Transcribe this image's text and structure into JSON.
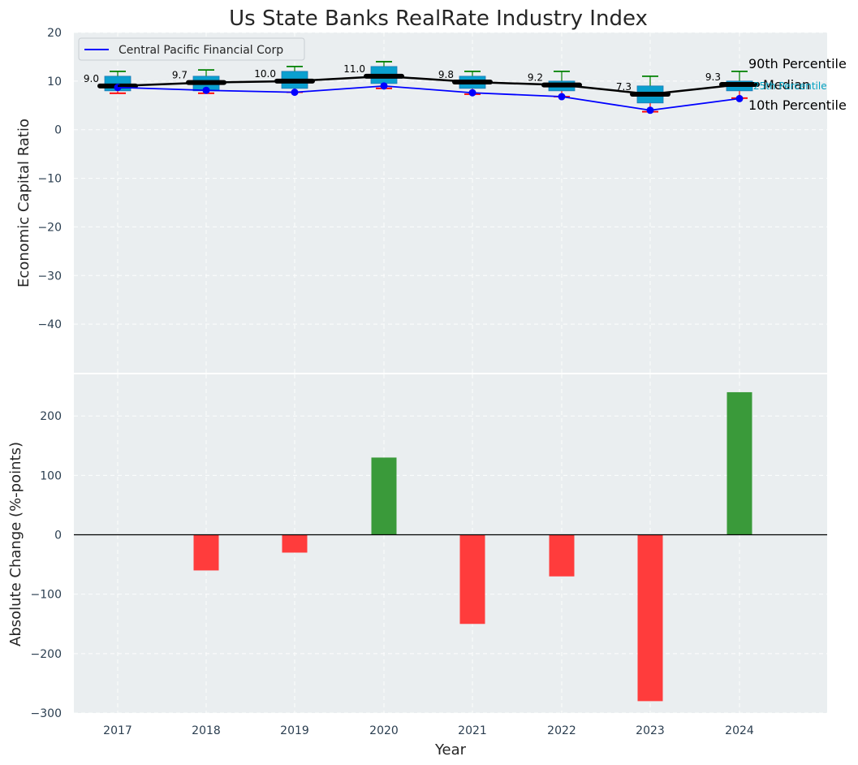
{
  "colors": {
    "panel_bg": "#eaeef0",
    "box_fill": "#0aa0cf",
    "box_edge": "#1e77b4",
    "median_line": "#000000",
    "company_line": "#0000ff",
    "whisker_top": "#008000",
    "whisker_bottom": "#ff0000",
    "bar_pos": "#3a9a3a",
    "bar_neg": "#ff3c3c",
    "label_25th": "#00a0c0"
  },
  "chart_data": [
    {
      "type": "box-line",
      "title": "Us State Banks RealRate Industry Index",
      "ylabel": "Economic Capital Ratio",
      "ylim": [
        -50,
        20
      ],
      "yticks": [
        20,
        10,
        0,
        -10,
        -20,
        -30,
        -40
      ],
      "ytick_labels": [
        "20",
        "10",
        "0",
        "−10",
        "−20",
        "−30",
        "−40"
      ],
      "categories": [
        "2017",
        "2018",
        "2019",
        "2020",
        "2021",
        "2022",
        "2023",
        "2024"
      ],
      "p90": [
        12.0,
        12.3,
        13.0,
        14.0,
        12.0,
        12.0,
        11.0,
        12.0
      ],
      "p75": [
        11.0,
        11.0,
        12.0,
        13.0,
        11.0,
        10.0,
        9.0,
        10.0
      ],
      "median": [
        9.0,
        9.7,
        10.0,
        11.0,
        9.8,
        9.2,
        7.3,
        9.3
      ],
      "median_labels": [
        "9.0",
        "9.7",
        "10.0",
        "11.0",
        "9.8",
        "9.2",
        "7.3",
        "9.3"
      ],
      "p25": [
        8.0,
        8.0,
        8.5,
        9.5,
        8.5,
        8.0,
        5.5,
        8.0
      ],
      "p10": [
        7.5,
        7.5,
        7.7,
        8.5,
        7.3,
        6.8,
        3.7,
        6.5
      ],
      "company_name": "Central Pacific Financial Corp",
      "company": [
        8.7,
        8.1,
        7.7,
        9.0,
        7.6,
        6.8,
        4.0,
        6.4
      ],
      "annotations": {
        "p90": "90th Percentile",
        "median": "Median",
        "p25": "25th Percentile",
        "p10": "10th Percentile"
      }
    },
    {
      "type": "bar",
      "xlabel": "Year",
      "ylabel": "Absolute Change (%-points)",
      "ylim": [
        -300,
        270
      ],
      "yticks": [
        200,
        100,
        0,
        -100,
        -200,
        -300
      ],
      "ytick_labels": [
        "200",
        "100",
        "0",
        "−100",
        "−200",
        "−300"
      ],
      "categories": [
        "2017",
        "2018",
        "2019",
        "2020",
        "2021",
        "2022",
        "2023",
        "2024"
      ],
      "values": [
        0,
        -60,
        -30,
        130,
        -150,
        -70,
        -280,
        240
      ]
    }
  ]
}
